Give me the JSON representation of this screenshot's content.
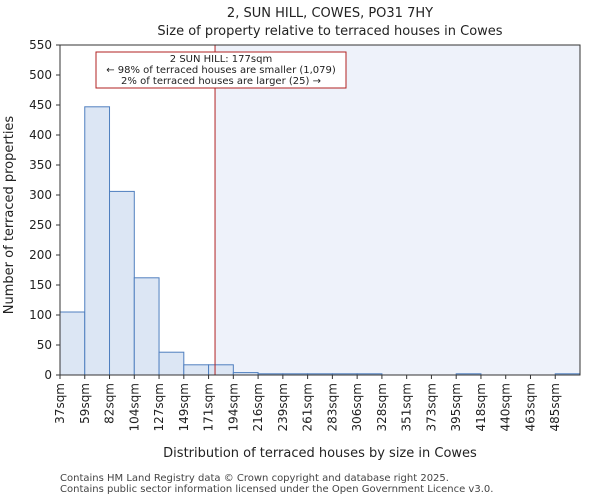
{
  "chart_data": {
    "type": "bar",
    "title": "2, SUN HILL, COWES, PO31 7HY",
    "subtitle": "Size of property relative to terraced houses in Cowes",
    "xlabel": "Distribution of terraced houses by size in Cowes",
    "ylabel": "Number of terraced properties",
    "ylim": [
      0,
      550
    ],
    "yticks": [
      0,
      50,
      100,
      150,
      200,
      250,
      300,
      350,
      400,
      450,
      500,
      550
    ],
    "categories": [
      "37sqm",
      "59sqm",
      "82sqm",
      "104sqm",
      "127sqm",
      "149sqm",
      "171sqm",
      "194sqm",
      "216sqm",
      "239sqm",
      "261sqm",
      "283sqm",
      "306sqm",
      "328sqm",
      "351sqm",
      "373sqm",
      "395sqm",
      "418sqm",
      "440sqm",
      "463sqm",
      "485sqm"
    ],
    "values": [
      105,
      447,
      306,
      162,
      38,
      17,
      17,
      4,
      2,
      2,
      2,
      2,
      2,
      0,
      0,
      0,
      2,
      0,
      0,
      0,
      2
    ],
    "marker": {
      "value_sqm": 177,
      "label_line1": "2 SUN HILL: 177sqm",
      "label_line2": "← 98% of terraced houses are smaller (1,079)",
      "label_line3": "2% of terraced houses are larger (25) →"
    },
    "colors": {
      "bar_fill": "#dce6f4",
      "bar_stroke": "#4f7fbf",
      "marker_line": "#b22222",
      "highlight_bg": "#eef2fa"
    }
  },
  "footer": {
    "line1": "Contains HM Land Registry data © Crown copyright and database right 2025.",
    "line2": "Contains public sector information licensed under the Open Government Licence v3.0."
  }
}
